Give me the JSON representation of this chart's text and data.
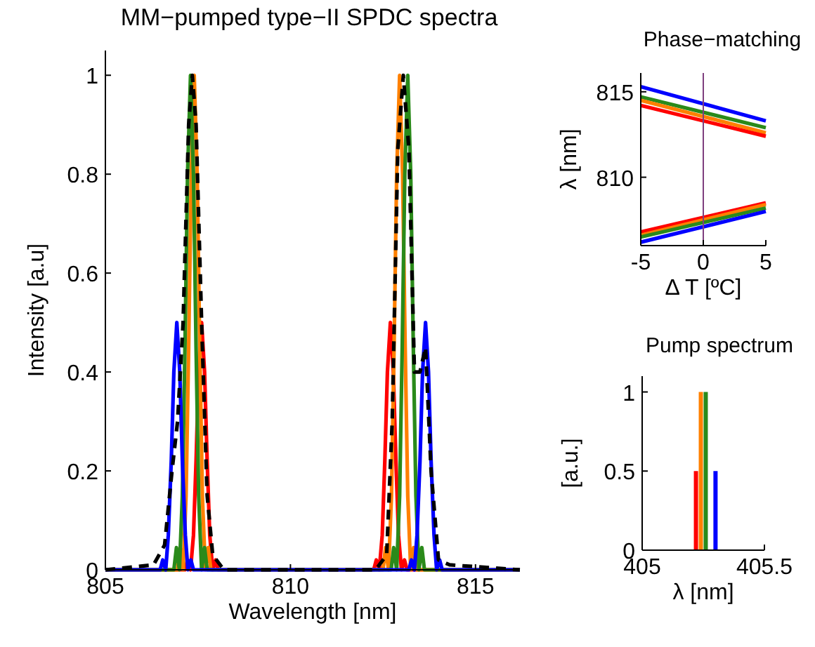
{
  "chart_data": [
    {
      "type": "line",
      "title": "MM−pumped type−II SPDC spectra",
      "xlabel": "Wavelength [nm]",
      "ylabel": "Intensity [a.u]",
      "xlim": [
        805,
        816.2
      ],
      "xticks": [
        805,
        810,
        815
      ],
      "ylim": [
        0,
        1.05
      ],
      "yticks": [
        0,
        0.2,
        0.4,
        0.6,
        0.8,
        1
      ],
      "series": [
        {
          "color": "#ff0000",
          "x": [
            805,
            806.7,
            807.15,
            807.22,
            807.3,
            807.38,
            807.45,
            807.52,
            807.6,
            807.68,
            807.75,
            807.82,
            807.9,
            807.98,
            808.05,
            809,
            812.25,
            812.32,
            812.4,
            812.48,
            812.55,
            812.62,
            812.7,
            812.78,
            812.85,
            812.92,
            813,
            813.08,
            813.15,
            816.2
          ],
          "values": [
            0,
            0,
            0,
            0.02,
            0,
            0.07,
            0.22,
            0.4,
            0.5,
            0.4,
            0.22,
            0.07,
            0,
            0.02,
            0,
            0,
            0,
            0.02,
            0,
            0.07,
            0.22,
            0.4,
            0.5,
            0.4,
            0.22,
            0.07,
            0,
            0.02,
            0,
            0
          ]
        },
        {
          "color": "#ff8000",
          "x": [
            805,
            806.6,
            806.95,
            807.02,
            807.1,
            807.18,
            807.25,
            807.32,
            807.4,
            807.48,
            807.55,
            807.62,
            807.7,
            807.78,
            807.85,
            809,
            812.5,
            812.57,
            812.65,
            812.73,
            812.8,
            812.87,
            812.95,
            813.03,
            813.1,
            813.17,
            813.25,
            813.33,
            813.4,
            816.2
          ],
          "values": [
            0,
            0,
            0,
            0.045,
            0,
            0.15,
            0.45,
            0.8,
            1,
            0.8,
            0.45,
            0.15,
            0,
            0.045,
            0,
            0,
            0,
            0.045,
            0,
            0.15,
            0.45,
            0.8,
            1,
            0.8,
            0.45,
            0.15,
            0,
            0.045,
            0,
            0
          ]
        },
        {
          "color": "#2a8a1a",
          "x": [
            805,
            806.5,
            806.85,
            806.92,
            807,
            807.08,
            807.15,
            807.22,
            807.3,
            807.38,
            807.45,
            807.52,
            807.6,
            807.68,
            807.75,
            809,
            812.72,
            812.79,
            812.87,
            812.95,
            813.02,
            813.09,
            813.17,
            813.25,
            813.32,
            813.39,
            813.47,
            813.55,
            813.62,
            816.2
          ],
          "values": [
            0,
            0,
            0,
            0.045,
            0,
            0.15,
            0.45,
            0.8,
            1,
            0.8,
            0.45,
            0.15,
            0,
            0.045,
            0,
            0,
            0,
            0.045,
            0,
            0.15,
            0.45,
            0.8,
            1,
            0.8,
            0.45,
            0.15,
            0,
            0.045,
            0,
            0
          ]
        },
        {
          "color": "#0000ff",
          "x": [
            805,
            806.2,
            806.48,
            806.55,
            806.63,
            806.7,
            806.78,
            806.85,
            806.93,
            807.01,
            807.08,
            807.16,
            807.23,
            807.31,
            807.38,
            809,
            813.2,
            813.27,
            813.35,
            813.42,
            813.5,
            813.57,
            813.65,
            813.73,
            813.8,
            813.88,
            813.95,
            814.03,
            814.1,
            816.2
          ],
          "values": [
            0,
            0,
            0,
            0.02,
            0,
            0.07,
            0.22,
            0.4,
            0.5,
            0.4,
            0.22,
            0.07,
            0,
            0.02,
            0,
            0,
            0,
            0.02,
            0,
            0.07,
            0.22,
            0.4,
            0.5,
            0.4,
            0.22,
            0.07,
            0,
            0.02,
            0,
            0
          ]
        },
        {
          "color": "#000000",
          "line_style": "dashed",
          "x": [
            805,
            806.3,
            806.6,
            806.8,
            806.95,
            807.1,
            807.25,
            807.35,
            807.45,
            807.6,
            807.75,
            807.9,
            808.2,
            812.3,
            812.6,
            812.75,
            812.9,
            813.05,
            813.2,
            813.35,
            813.5,
            813.65,
            813.8,
            814,
            814.3,
            816.2
          ],
          "values": [
            0,
            0.01,
            0.05,
            0.2,
            0.3,
            0.5,
            0.9,
            1,
            0.9,
            0.5,
            0.15,
            0.03,
            0,
            0,
            0.03,
            0.3,
            0.85,
            1,
            0.85,
            0.4,
            0.4,
            0.45,
            0.2,
            0.02,
            0.01,
            0
          ]
        }
      ]
    },
    {
      "type": "line",
      "title": "Phase−matching",
      "xlabel": "Δ T [ºC]",
      "ylabel": "λ [nm]",
      "xlim": [
        -5,
        5
      ],
      "xticks": [
        -5,
        0,
        5
      ],
      "ylim": [
        806,
        816.1
      ],
      "yticks": [
        810,
        815
      ],
      "ref_lines": [
        {
          "axis": "x",
          "value": 0,
          "color": "#7f3f7f"
        }
      ],
      "series": [
        {
          "color": "#0000ff",
          "x": [
            -5,
            5
          ],
          "values": [
            815.3,
            813.3
          ]
        },
        {
          "color": "#2a8a1a",
          "x": [
            -5,
            5
          ],
          "values": [
            814.7,
            812.9
          ]
        },
        {
          "color": "#ff8000",
          "x": [
            -5,
            5
          ],
          "values": [
            814.5,
            812.6
          ]
        },
        {
          "color": "#ff0000",
          "x": [
            -5,
            5
          ],
          "values": [
            814.2,
            812.4
          ]
        },
        {
          "color": "#ff0000",
          "x": [
            -5,
            5
          ],
          "values": [
            806.8,
            808.5
          ]
        },
        {
          "color": "#ff8000",
          "x": [
            -5,
            5
          ],
          "values": [
            806.6,
            808.4
          ]
        },
        {
          "color": "#2a8a1a",
          "x": [
            -5,
            5
          ],
          "values": [
            806.5,
            808.2
          ]
        },
        {
          "color": "#0000ff",
          "x": [
            -5,
            5
          ],
          "values": [
            806.2,
            808
          ]
        }
      ]
    },
    {
      "type": "bar",
      "title": "Pump spectrum",
      "xlabel": "λ [nm]",
      "ylabel": "[a.u.]",
      "xlim": [
        405,
        405.5
      ],
      "xticks": [
        405,
        405.5
      ],
      "ylim": [
        0,
        1.1
      ],
      "yticks": [
        0,
        0.5,
        1
      ],
      "x": [
        405.22,
        405.24,
        405.26,
        405.3
      ],
      "values": [
        0.5,
        1,
        1,
        0.5
      ],
      "colors": [
        "#ff0000",
        "#ff8000",
        "#2a8a1a",
        "#0000ff"
      ]
    }
  ]
}
